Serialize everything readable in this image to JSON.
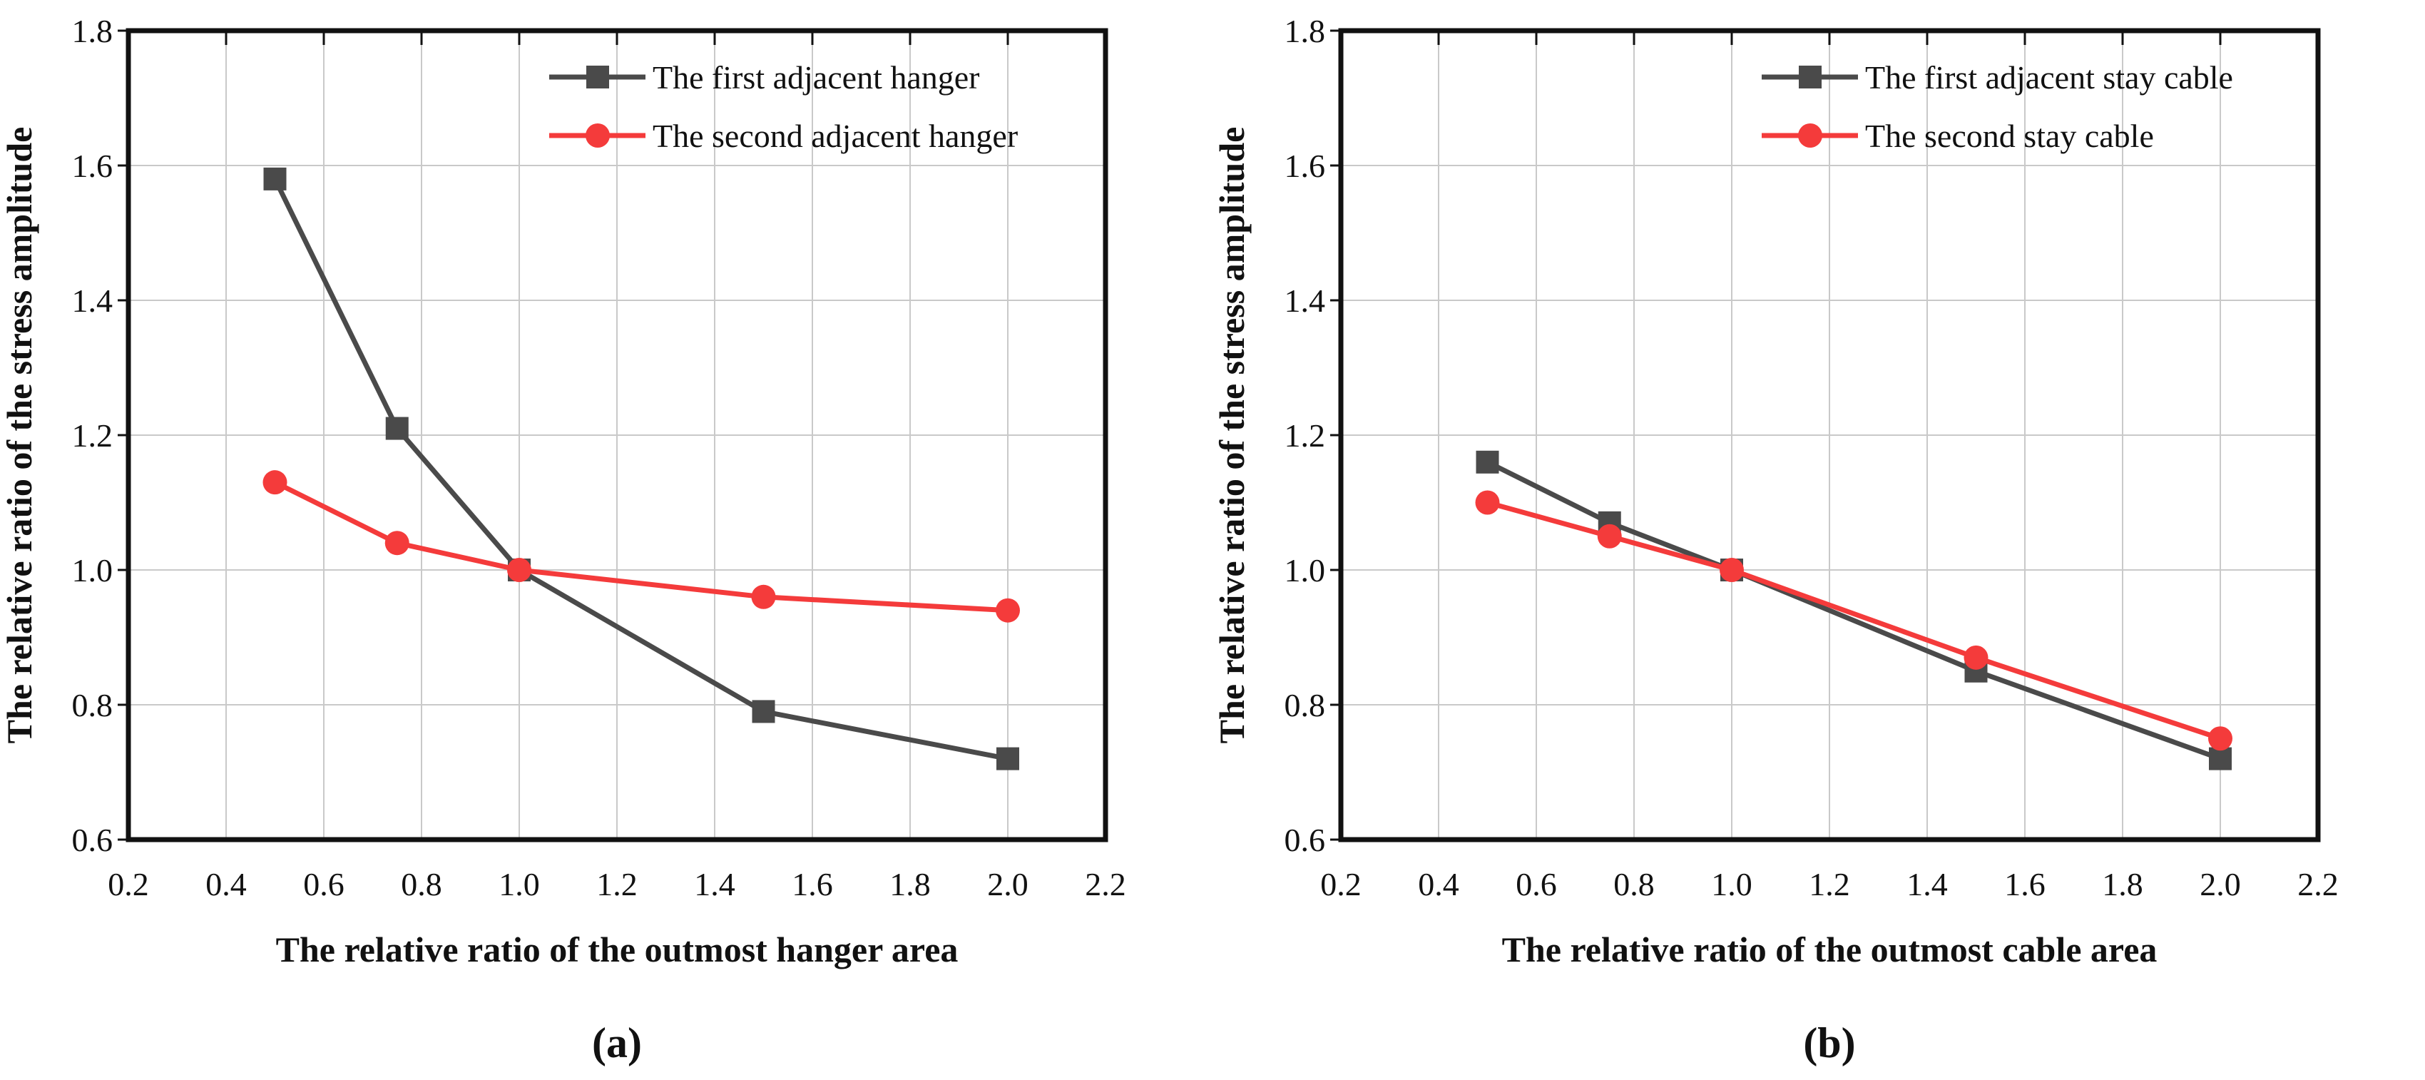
{
  "figure": {
    "background": "#FFFFFF"
  },
  "style": {
    "grid_color": "#C9C9C9",
    "axis_color": "#111111",
    "text_color": "#111111",
    "series_dark": "#4A4A4A",
    "series_red": "#F43B3B"
  },
  "chart_data": [
    {
      "type": "line",
      "caption": "(a)",
      "xlabel": "The relative ratio of the outmost hanger area",
      "ylabel": "The relative ratio of the stress amplitude",
      "xlim": [
        0.2,
        2.2
      ],
      "ylim": [
        0.6,
        1.8
      ],
      "xticks": [
        0.2,
        0.4,
        0.6,
        0.8,
        1.0,
        1.2,
        1.4,
        1.6,
        1.8,
        2.0,
        2.2
      ],
      "yticks": [
        0.6,
        0.8,
        1.0,
        1.2,
        1.4,
        1.6,
        1.8
      ],
      "grid": true,
      "legend_position": "top-right",
      "x": [
        0.5,
        0.75,
        1.0,
        1.5,
        2.0
      ],
      "series": [
        {
          "name": "The first adjacent hanger",
          "marker": "square",
          "color": "#4A4A4A",
          "values": [
            1.58,
            1.21,
            1.0,
            0.79,
            0.72
          ]
        },
        {
          "name": "The second adjacent hanger",
          "marker": "circle",
          "color": "#F43B3B",
          "values": [
            1.13,
            1.04,
            1.0,
            0.96,
            0.94
          ]
        }
      ]
    },
    {
      "type": "line",
      "caption": "(b)",
      "xlabel": "The relative ratio of the outmost cable area",
      "ylabel": "The relative ratio of the stress amplitude",
      "xlim": [
        0.2,
        2.2
      ],
      "ylim": [
        0.6,
        1.8
      ],
      "xticks": [
        0.2,
        0.4,
        0.6,
        0.8,
        1.0,
        1.2,
        1.4,
        1.6,
        1.8,
        2.0,
        2.2
      ],
      "yticks": [
        0.6,
        0.8,
        1.0,
        1.2,
        1.4,
        1.6,
        1.8
      ],
      "grid": true,
      "legend_position": "top-right",
      "x": [
        0.5,
        0.75,
        1.0,
        1.5,
        2.0
      ],
      "series": [
        {
          "name": "The first adjacent stay cable",
          "marker": "square",
          "color": "#4A4A4A",
          "values": [
            1.16,
            1.07,
            1.0,
            0.85,
            0.72
          ]
        },
        {
          "name": "The second stay cable",
          "marker": "circle",
          "color": "#F43B3B",
          "values": [
            1.1,
            1.05,
            1.0,
            0.87,
            0.75
          ]
        }
      ]
    }
  ]
}
